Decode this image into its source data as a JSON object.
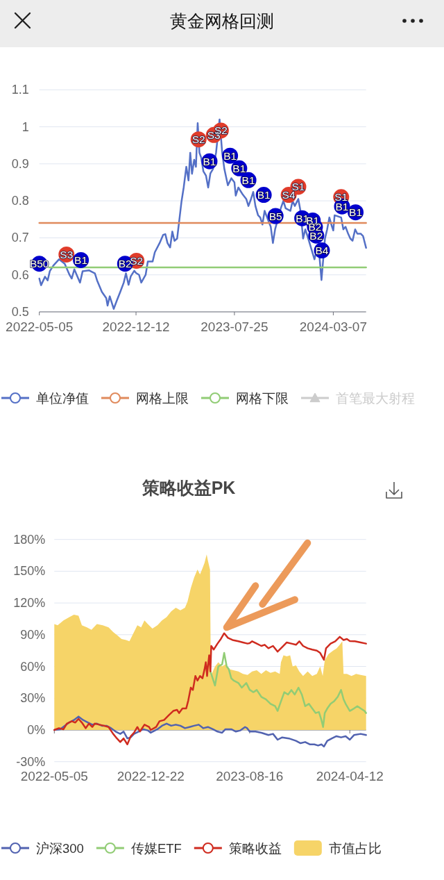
{
  "chart_data": [
    {
      "type": "line",
      "title": "黄金网格回测",
      "xlim": [
        "2022-05-05",
        "2024-05-21"
      ],
      "xticks": [
        "2022-05-05",
        "2022-12-12",
        "2023-07-25",
        "2024-03-07"
      ],
      "ylim": [
        0.5,
        1.1
      ],
      "yticks": [
        0.5,
        0.6,
        0.7,
        0.8,
        0.9,
        1,
        1.1
      ],
      "grid": "y",
      "legend": "bottom",
      "series": [
        {
          "name": "单位净值",
          "color": "#5470c6",
          "x": [
            "2022-05-05",
            "2022-05-09",
            "2022-05-18",
            "2022-05-24",
            "2022-05-29",
            "2022-06-06",
            "2022-06-19",
            "2022-07-02",
            "2022-07-13",
            "2022-07-18",
            "2022-07-24",
            "2022-08-06",
            "2022-08-12",
            "2022-08-27",
            "2022-09-09",
            "2022-09-14",
            "2022-09-25",
            "2022-10-05",
            "2022-10-08",
            "2022-10-13",
            "2022-10-22",
            "2022-10-29",
            "2022-11-06",
            "2022-11-14",
            "2022-11-19",
            "2022-11-25",
            "2022-11-30",
            "2022-12-08",
            "2022-12-12",
            "2022-12-19",
            "2022-12-24",
            "2023-01-03",
            "2023-01-08",
            "2023-01-19",
            "2023-01-24",
            "2023-02-04",
            "2023-02-12",
            "2023-02-17",
            "2023-02-22",
            "2023-02-28",
            "2023-03-05",
            "2023-03-10",
            "2023-03-16",
            "2023-03-21",
            "2023-03-26",
            "2023-03-31",
            "2023-04-06",
            "2023-04-11",
            "2023-04-15",
            "2023-04-19",
            "2023-04-24",
            "2023-04-28",
            "2023-05-02",
            "2023-05-06",
            "2023-05-10",
            "2023-05-15",
            "2023-05-21",
            "2023-05-26",
            "2023-05-31",
            "2023-06-06",
            "2023-06-13",
            "2023-06-21",
            "2023-06-27",
            "2023-07-02",
            "2023-07-10",
            "2023-07-18",
            "2023-07-25",
            "2023-07-28",
            "2023-08-03",
            "2023-08-13",
            "2023-08-21",
            "2023-08-26",
            "2023-09-01",
            "2023-09-06",
            "2023-09-11",
            "2023-09-17",
            "2023-09-22",
            "2023-09-27",
            "2023-10-02",
            "2023-10-10",
            "2023-10-16",
            "2023-10-21",
            "2023-10-26",
            "2023-11-08",
            "2023-11-14",
            "2023-11-19",
            "2023-11-30",
            "2023-12-05",
            "2023-12-10",
            "2023-12-18",
            "2023-12-23",
            "2023-12-29",
            "2024-01-03",
            "2024-01-08",
            "2024-01-24",
            "2024-01-29",
            "2024-02-04",
            "2024-02-09",
            "2024-02-17",
            "2024-02-22",
            "2024-02-27",
            "2024-03-04",
            "2024-03-07",
            "2024-03-10",
            "2024-03-25",
            "2024-03-30",
            "2024-04-04",
            "2024-04-10",
            "2024-04-15",
            "2024-04-20",
            "2024-04-26",
            "2024-05-01",
            "2024-05-09",
            "2024-05-14",
            "2024-05-21"
          ],
          "values": [
            0.59,
            0.572,
            0.595,
            0.585,
            0.61,
            0.625,
            0.642,
            0.63,
            0.6,
            0.59,
            0.615,
            0.579,
            0.61,
            0.612,
            0.604,
            0.585,
            0.554,
            0.537,
            0.517,
            0.542,
            0.508,
            0.53,
            0.554,
            0.579,
            0.604,
            0.573,
            0.596,
            0.611,
            0.605,
            0.6,
            0.579,
            0.6,
            0.636,
            0.636,
            0.661,
            0.686,
            0.708,
            0.71,
            0.686,
            0.674,
            0.717,
            0.692,
            0.698,
            0.748,
            0.798,
            0.836,
            0.892,
            0.855,
            0.93,
            0.873,
            0.911,
            0.892,
            1.01,
            0.93,
            0.917,
            0.88,
            0.868,
            0.836,
            0.874,
            0.886,
            0.93,
            1.02,
            0.93,
            0.886,
            0.842,
            0.861,
            0.85,
            0.814,
            0.836,
            0.817,
            0.805,
            0.786,
            0.805,
            0.824,
            0.786,
            0.761,
            0.755,
            0.736,
            0.773,
            0.748,
            0.73,
            0.686,
            0.723,
            0.78,
            0.8,
            0.78,
            0.773,
            0.8,
            0.786,
            0.805,
            0.773,
            0.698,
            0.723,
            0.705,
            0.642,
            0.667,
            0.655,
            0.586,
            0.698,
            0.723,
            0.755,
            0.73,
            0.72,
            0.761,
            0.755,
            0.723,
            0.73,
            0.711,
            0.698,
            0.692,
            0.723,
            0.711,
            0.711,
            0.705,
            0.673
          ]
        },
        {
          "name": "网格上限",
          "color": "#e08a5c",
          "x": [
            "2022-05-05",
            "2024-05-21"
          ],
          "values": [
            0.74,
            0.74
          ]
        },
        {
          "name": "网格下限",
          "color": "#91cc75",
          "x": [
            "2022-05-27",
            "2024-05-21"
          ],
          "values": [
            0.62,
            0.62
          ]
        },
        {
          "name": "首笔最大射程",
          "color": "#cccccc",
          "marker": "triangle"
        },
        {
          "type": "scatter",
          "color": "#e03c2b",
          "marker": "circle",
          "x": [
            "2022-07-06",
            "2022-12-13",
            "2023-05-04",
            "2023-06-08",
            "2023-06-24",
            "2023-11-26",
            "2023-12-18",
            "2024-03-25"
          ],
          "values": [
            0.655,
            0.638,
            0.966,
            0.978,
            0.99,
            0.816,
            0.838,
            0.81
          ],
          "value_labels": [
            "S3",
            "S2",
            "S2",
            "S3",
            "S2",
            "S4",
            "S1",
            "S1"
          ]
        },
        {
          "type": "scatter",
          "color": "#0000cd",
          "marker": "circle",
          "x": [
            "2022-05-05",
            "2022-08-08",
            "2022-11-17",
            "2023-05-29",
            "2023-07-15",
            "2023-08-05",
            "2023-08-26",
            "2023-09-30",
            "2023-10-27",
            "2023-12-27",
            "2024-01-20",
            "2024-01-25",
            "2024-01-28",
            "2024-02-10",
            "2024-03-27",
            "2024-04-27"
          ],
          "values": [
            0.63,
            0.64,
            0.63,
            0.907,
            0.922,
            0.888,
            0.856,
            0.816,
            0.759,
            0.753,
            0.747,
            0.729,
            0.706,
            0.666,
            0.785,
            0.769
          ],
          "value_labels": [
            "B50",
            "B1",
            "B2",
            "B1",
            "B1",
            "B1",
            "B1",
            "B1",
            "B5",
            "B1",
            "B1",
            "B2",
            "B2",
            "B4",
            "B1",
            "B1"
          ]
        }
      ]
    },
    {
      "type": "line",
      "title": "策略收益PK",
      "xlim": [
        "2022-05-05",
        "2024-05-21"
      ],
      "xticks": [
        "2022-05-05",
        "2022-12-22",
        "2023-08-16",
        "2024-04-12"
      ],
      "ylim": [
        -30,
        180
      ],
      "yticks": [
        {
          "value": -30,
          "label": "-30%"
        },
        {
          "value": 0,
          "label": "0%"
        },
        {
          "value": 30,
          "label": "30%"
        },
        {
          "value": 60,
          "label": "60%"
        },
        {
          "value": 90,
          "label": "90%"
        },
        {
          "value": 120,
          "label": "120%"
        },
        {
          "value": 150,
          "label": "150%"
        },
        {
          "value": 180,
          "label": "180%"
        }
      ],
      "grid": "y",
      "legend": "bottom",
      "series": [
        {
          "name": "沪深300",
          "color": "#5162b0",
          "x": [
            "2022-05-05",
            "2022-05-19",
            "2022-05-30",
            "2022-06-10",
            "2022-06-21",
            "2022-07-02",
            "2022-07-13",
            "2022-07-24",
            "2022-08-04",
            "2022-08-15",
            "2022-08-27",
            "2022-09-07",
            "2022-09-18",
            "2022-09-29",
            "2022-10-10",
            "2022-10-18",
            "2022-10-27",
            "2022-11-04",
            "2022-11-12",
            "2022-11-23",
            "2022-12-04",
            "2022-12-15",
            "2022-12-22",
            "2023-01-07",
            "2023-01-18",
            "2023-01-29",
            "2023-02-09",
            "2023-02-20",
            "2023-03-03",
            "2023-03-14",
            "2023-03-25",
            "2023-04-05",
            "2023-04-16",
            "2023-04-27",
            "2023-05-08",
            "2023-05-20",
            "2023-05-31",
            "2023-06-11",
            "2023-06-19",
            "2023-07-03",
            "2023-07-14",
            "2023-07-25",
            "2023-08-05",
            "2023-08-10",
            "2023-08-16",
            "2023-08-30",
            "2023-09-13",
            "2023-09-30",
            "2023-10-11",
            "2023-10-22",
            "2023-11-02",
            "2023-11-18",
            "2023-12-05",
            "2023-12-16",
            "2023-12-27",
            "2024-01-07",
            "2024-01-18",
            "2024-01-27",
            "2024-02-04",
            "2024-02-10",
            "2024-02-18",
            "2024-02-29",
            "2024-03-11",
            "2024-03-22",
            "2024-04-02",
            "2024-04-12",
            "2024-04-22",
            "2024-05-08",
            "2024-05-21"
          ],
          "values": [
            0,
            0.7,
            4,
            7.2,
            9.4,
            12.7,
            9.4,
            7.2,
            5,
            6,
            4,
            4,
            1.7,
            -1.5,
            -3.7,
            -1.5,
            -8,
            -7,
            -3.7,
            -1.5,
            0.7,
            -0.4,
            -2.6,
            0.7,
            4,
            6,
            4,
            5,
            4,
            1.7,
            2.8,
            4,
            5,
            1.7,
            2.8,
            0.7,
            -1.5,
            -2.6,
            0.7,
            0.7,
            -1.5,
            -0.4,
            2.8,
            1.7,
            -1.5,
            -1.5,
            -2.6,
            -4.8,
            -3.7,
            -9.2,
            -7,
            -8,
            -10.3,
            -12.5,
            -11.4,
            -13.6,
            -13.6,
            -14.7,
            -13.6,
            -15.7,
            -10.3,
            -8,
            -5.9,
            -7,
            -5.9,
            -9.2,
            -4.8,
            -3.7,
            -4.8
          ]
        },
        {
          "name": "传媒ETF",
          "color": "#91cc75",
          "x": [
            "2023-05-14",
            "2023-05-25",
            "2023-06-02",
            "2023-06-11",
            "2023-06-16",
            "2023-06-22",
            "2023-06-27",
            "2023-07-03",
            "2023-07-09",
            "2023-07-20",
            "2023-07-28",
            "2023-08-08",
            "2023-08-16",
            "2023-08-25",
            "2023-09-02",
            "2023-09-13",
            "2023-09-24",
            "2023-10-05",
            "2023-10-16",
            "2023-10-22",
            "2023-10-30",
            "2023-11-07",
            "2023-11-16",
            "2023-11-24",
            "2023-12-02",
            "2023-12-11",
            "2023-12-19",
            "2023-12-27",
            "2024-01-05",
            "2024-01-13",
            "2024-01-21",
            "2024-01-29",
            "2024-02-04",
            "2024-02-08",
            "2024-02-12",
            "2024-02-18",
            "2024-02-26",
            "2024-03-05",
            "2024-03-14",
            "2024-03-22",
            "2024-03-28",
            "2024-04-02",
            "2024-04-12",
            "2024-04-22",
            "2024-04-30",
            "2024-05-08",
            "2024-05-17",
            "2024-05-21"
          ],
          "values": [
            55.3,
            42,
            60,
            62,
            72.8,
            60,
            57.5,
            48.8,
            46.6,
            44.4,
            40,
            44.4,
            38,
            35.7,
            37.8,
            31.3,
            29,
            24.7,
            22.5,
            18,
            27,
            35.7,
            33.5,
            37.8,
            33.5,
            40,
            33.5,
            22.5,
            24.7,
            20.3,
            16,
            17,
            9.4,
            2.8,
            16,
            20.3,
            24.7,
            27,
            31.3,
            37.8,
            29,
            24.7,
            18,
            20.3,
            22.5,
            20.3,
            18,
            16
          ]
        },
        {
          "name": "策略收益",
          "color": "#cf2b1f",
          "x": [
            "2022-05-05",
            "2022-05-16",
            "2022-05-27",
            "2022-06-04",
            "2022-06-16",
            "2022-06-24",
            "2022-07-02",
            "2022-07-10",
            "2022-07-19",
            "2022-07-27",
            "2022-08-04",
            "2022-08-10",
            "2022-08-21",
            "2022-09-01",
            "2022-09-12",
            "2022-09-23",
            "2022-10-02",
            "2022-10-10",
            "2022-10-18",
            "2022-10-27",
            "2022-11-04",
            "2022-11-12",
            "2022-11-20",
            "2022-11-26",
            "2022-12-07",
            "2022-12-18",
            "2022-12-22",
            "2023-01-04",
            "2023-01-12",
            "2023-01-23",
            "2023-02-03",
            "2023-02-14",
            "2023-02-23",
            "2023-02-28",
            "2023-03-08",
            "2023-03-17",
            "2023-03-22",
            "2023-03-28",
            "2023-04-02",
            "2023-04-08",
            "2023-04-13",
            "2023-04-19",
            "2023-04-25",
            "2023-04-30",
            "2023-05-03",
            "2023-05-06",
            "2023-05-08",
            "2023-05-11",
            "2023-05-14",
            "2023-05-16",
            "2023-05-22",
            "2023-05-31",
            "2023-06-08",
            "2023-06-16",
            "2023-06-25",
            "2023-07-06",
            "2023-07-20",
            "2023-07-31",
            "2023-08-11",
            "2023-08-16",
            "2023-08-22",
            "2023-09-02",
            "2023-09-13",
            "2023-09-21",
            "2023-09-30",
            "2023-10-11",
            "2023-10-22",
            "2023-11-02",
            "2023-11-13",
            "2023-11-24",
            "2023-12-05",
            "2023-12-13",
            "2023-12-22",
            "2024-01-02",
            "2024-01-13",
            "2024-01-24",
            "2024-02-01",
            "2024-02-10",
            "2024-02-15",
            "2024-02-26",
            "2024-03-08",
            "2024-03-19",
            "2024-03-28",
            "2024-04-05",
            "2024-04-12",
            "2024-04-24",
            "2024-05-08",
            "2024-05-21"
          ],
          "values": [
            0,
            1.7,
            0.7,
            6,
            8.3,
            7,
            10.5,
            7,
            1.7,
            6,
            2.8,
            6,
            5,
            4,
            2.8,
            -3.7,
            -8,
            -11.4,
            -8,
            -13.6,
            -6,
            -2.6,
            2.8,
            -1.5,
            5,
            2.8,
            0,
            2.8,
            8.3,
            9.4,
            13.8,
            18,
            19,
            16,
            20.3,
            20.3,
            28,
            40,
            37.8,
            51,
            46.6,
            51,
            48.8,
            57.5,
            64,
            51,
            60,
            70.6,
            55.3,
            79.4,
            76,
            81.6,
            86,
            91.4,
            87,
            85,
            83.8,
            82.7,
            81.6,
            82,
            83.8,
            81.6,
            79.4,
            80.5,
            77.2,
            79.4,
            74,
            78.3,
            82.7,
            81.6,
            80.5,
            83.8,
            79.4,
            77.2,
            76,
            75,
            72.8,
            66.3,
            77.2,
            81.6,
            83.8,
            88,
            85,
            86,
            84,
            83.8,
            82.7,
            81.6
          ]
        },
        {
          "name": "市值占比",
          "type": "area",
          "color": "#f6d468",
          "x": [
            "2022-05-05",
            "2022-05-13",
            "2022-05-27",
            "2022-06-10",
            "2022-06-21",
            "2022-07-02",
            "2022-07-10",
            "2022-07-22",
            "2022-08-02",
            "2022-08-15",
            "2022-08-29",
            "2022-09-12",
            "2022-09-23",
            "2022-10-04",
            "2022-10-13",
            "2022-10-24",
            "2022-11-01",
            "2022-11-09",
            "2022-11-20",
            "2022-11-29",
            "2022-12-07",
            "2022-12-15",
            "2022-12-26",
            "2023-01-07",
            "2023-01-18",
            "2023-01-29",
            "2023-02-09",
            "2023-02-20",
            "2023-03-03",
            "2023-03-14",
            "2023-03-20",
            "2023-03-28",
            "2023-04-05",
            "2023-04-13",
            "2023-04-19",
            "2023-04-25",
            "2023-04-30",
            "2023-05-05",
            "2023-05-08",
            "2023-05-13",
            "2023-05-15",
            "2023-05-25",
            "2023-06-02",
            "2023-06-11",
            "2023-06-19",
            "2023-06-27",
            "2023-07-08",
            "2023-07-20",
            "2023-07-31",
            "2023-08-11",
            "2023-08-22",
            "2023-09-02",
            "2023-09-13",
            "2023-09-24",
            "2023-10-05",
            "2023-10-16",
            "2023-10-27",
            "2023-10-30",
            "2023-11-05",
            "2023-11-13",
            "2023-11-21",
            "2023-11-27",
            "2023-12-05",
            "2023-12-13",
            "2023-12-22",
            "2024-01-02",
            "2024-01-13",
            "2024-01-24",
            "2024-02-01",
            "2024-02-07",
            "2024-02-12",
            "2024-02-21",
            "2024-03-03",
            "2024-03-11",
            "2024-03-19",
            "2024-03-25",
            "2024-03-28",
            "2024-04-05",
            "2024-04-16",
            "2024-04-27",
            "2024-05-08",
            "2024-05-21"
          ],
          "values": [
            100,
            99,
            103.5,
            106.7,
            109,
            108,
            99,
            97,
            94.7,
            100,
            99,
            97,
            92.5,
            89,
            86,
            85,
            83.8,
            90.3,
            99,
            97,
            103.5,
            100,
            95.8,
            99,
            103.5,
            106.7,
            112,
            115.5,
            113,
            115.5,
            121,
            134,
            144,
            151.6,
            147,
            152.7,
            158,
            165.8,
            160,
            151.6,
            51,
            60,
            64,
            60,
            62,
            57.5,
            56.4,
            55.3,
            53,
            52,
            55.3,
            56.4,
            53,
            56.4,
            54,
            55.3,
            53,
            64,
            70.6,
            69.5,
            70.6,
            60,
            61,
            55.3,
            51,
            55.3,
            51,
            53,
            60,
            51,
            66,
            71.7,
            75,
            77,
            80.5,
            83.8,
            53,
            53,
            51,
            53,
            52,
            51
          ]
        }
      ]
    }
  ]
}
